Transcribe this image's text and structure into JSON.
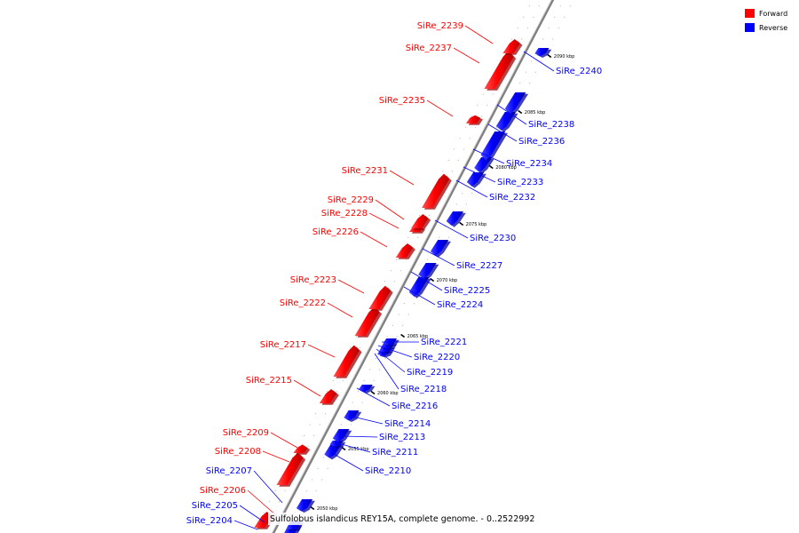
{
  "caption": "Sulfolobus islandicus REY15A, complete genome. - 0..2522992",
  "legend": [
    {
      "label": "Forward",
      "color": "#ff0000"
    },
    {
      "label": "Reverse",
      "color": "#0000ff"
    }
  ],
  "colors": {
    "forward": "#ff0000",
    "reverse": "#0000ff",
    "axis": "#808080"
  },
  "ticks": [
    "2050 kbp",
    "2055 kbp",
    "2060 kbp",
    "2065 kbp",
    "2070 kbp",
    "2075 kbp",
    "2080 kbp",
    "2085 kbp",
    "2090 kbp"
  ],
  "genes": [
    {
      "name": "SiRe_2204",
      "strand": "reverse"
    },
    {
      "name": "SiRe_2205",
      "strand": "reverse"
    },
    {
      "name": "SiRe_2206",
      "strand": "forward"
    },
    {
      "name": "SiRe_2207",
      "strand": "reverse"
    },
    {
      "name": "SiRe_2208",
      "strand": "forward"
    },
    {
      "name": "SiRe_2209",
      "strand": "forward"
    },
    {
      "name": "SiRe_2210",
      "strand": "reverse"
    },
    {
      "name": "SiRe_2211",
      "strand": "reverse"
    },
    {
      "name": "SiRe_2213",
      "strand": "reverse"
    },
    {
      "name": "SiRe_2214",
      "strand": "reverse"
    },
    {
      "name": "SiRe_2215",
      "strand": "forward"
    },
    {
      "name": "SiRe_2216",
      "strand": "reverse"
    },
    {
      "name": "SiRe_2217",
      "strand": "forward"
    },
    {
      "name": "SiRe_2218",
      "strand": "reverse"
    },
    {
      "name": "SiRe_2219",
      "strand": "reverse"
    },
    {
      "name": "SiRe_2220",
      "strand": "reverse"
    },
    {
      "name": "SiRe_2221",
      "strand": "reverse"
    },
    {
      "name": "SiRe_2222",
      "strand": "forward"
    },
    {
      "name": "SiRe_2223",
      "strand": "forward"
    },
    {
      "name": "SiRe_2224",
      "strand": "reverse"
    },
    {
      "name": "SiRe_2225",
      "strand": "reverse"
    },
    {
      "name": "SiRe_2226",
      "strand": "forward"
    },
    {
      "name": "SiRe_2227",
      "strand": "reverse"
    },
    {
      "name": "SiRe_2228",
      "strand": "forward"
    },
    {
      "name": "SiRe_2229",
      "strand": "forward"
    },
    {
      "name": "SiRe_2230",
      "strand": "reverse"
    },
    {
      "name": "SiRe_2231",
      "strand": "forward"
    },
    {
      "name": "SiRe_2232",
      "strand": "reverse"
    },
    {
      "name": "SiRe_2233",
      "strand": "reverse"
    },
    {
      "name": "SiRe_2234",
      "strand": "reverse"
    },
    {
      "name": "SiRe_2235",
      "strand": "forward"
    },
    {
      "name": "SiRe_2236",
      "strand": "reverse"
    },
    {
      "name": "SiRe_2237",
      "strand": "forward"
    },
    {
      "name": "SiRe_2238",
      "strand": "reverse"
    },
    {
      "name": "SiRe_2239",
      "strand": "forward"
    },
    {
      "name": "SiRe_2240",
      "strand": "reverse"
    }
  ]
}
